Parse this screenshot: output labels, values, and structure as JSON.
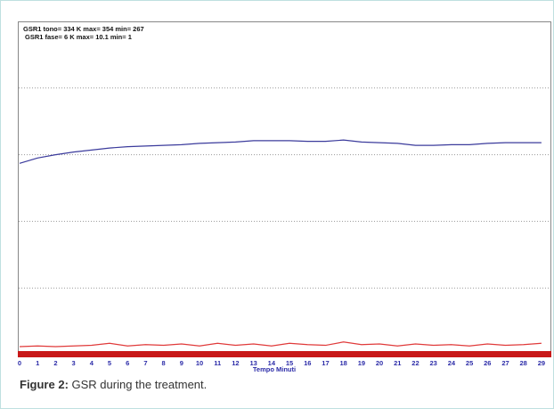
{
  "chart_data": {
    "type": "line",
    "annotations": [
      "GSR1 tono= 334 K  max= 354  min= 267",
      "GSR1 fase= 6 K  max= 10.1  min= 1"
    ],
    "xlabel": "Tempo Minuti",
    "x": [
      0,
      1,
      2,
      3,
      4,
      5,
      6,
      7,
      8,
      9,
      10,
      11,
      12,
      13,
      14,
      15,
      16,
      17,
      18,
      19,
      20,
      21,
      22,
      23,
      24,
      25,
      26,
      27,
      28,
      29
    ],
    "xlim": [
      0,
      29.5
    ],
    "xticks": [
      0,
      1,
      2,
      3,
      4,
      5,
      6,
      7,
      8,
      9,
      10,
      11,
      12,
      13,
      14,
      15,
      16,
      17,
      18,
      19,
      20,
      21,
      22,
      23,
      24,
      25,
      26,
      27,
      28,
      29
    ],
    "ylim": [
      0,
      5
    ],
    "yticks": [
      1,
      2,
      3,
      4
    ],
    "grid": true,
    "series": [
      {
        "color": "#3b3b9c",
        "values": [
          2.87,
          2.95,
          3.0,
          3.04,
          3.07,
          3.1,
          3.12,
          3.13,
          3.14,
          3.15,
          3.17,
          3.18,
          3.19,
          3.21,
          3.21,
          3.21,
          3.2,
          3.2,
          3.22,
          3.19,
          3.18,
          3.17,
          3.14,
          3.14,
          3.15,
          3.15,
          3.17,
          3.18,
          3.18,
          3.18
        ]
      },
      {
        "color": "#e03a3a",
        "values": [
          0.12,
          0.13,
          0.12,
          0.13,
          0.14,
          0.17,
          0.13,
          0.15,
          0.14,
          0.16,
          0.13,
          0.17,
          0.14,
          0.16,
          0.13,
          0.17,
          0.15,
          0.14,
          0.19,
          0.15,
          0.16,
          0.13,
          0.16,
          0.14,
          0.15,
          0.13,
          0.16,
          0.14,
          0.15,
          0.17
        ]
      }
    ]
  },
  "caption": {
    "label": "Figure 2:",
    "text": " GSR during the treatment."
  }
}
